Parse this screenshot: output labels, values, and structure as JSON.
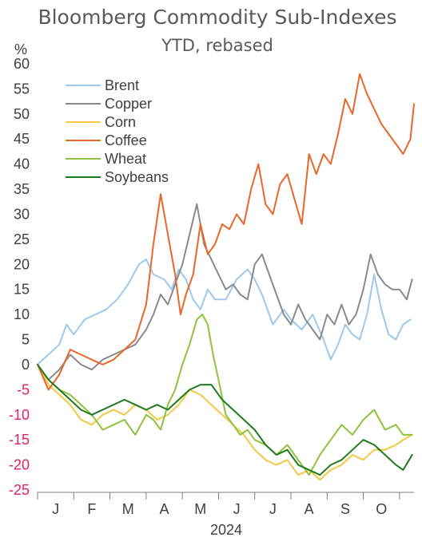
{
  "chart_data": {
    "type": "line",
    "title": "Bloomberg Commodity Sub-Indexes",
    "subtitle": "YTD, rebased",
    "ylabel": "%",
    "xlabel": "2024",
    "ylim": [
      -25,
      60
    ],
    "yticks": [
      60,
      55,
      50,
      45,
      40,
      35,
      30,
      25,
      20,
      15,
      10,
      5,
      0,
      -5,
      -10,
      -15,
      -20,
      -25
    ],
    "months": [
      "J",
      "F",
      "M",
      "A",
      "M",
      "J",
      "J",
      "A",
      "S",
      "O"
    ],
    "x_range": [
      0,
      10.4
    ],
    "colors": {
      "positive_tick": "#3f3f3f",
      "negative_tick": "#e0245e",
      "axis": "#7f7f7f"
    },
    "legend_position": "top-left",
    "series": [
      {
        "name": "Brent",
        "color": "#9dc9ec",
        "x": [
          0,
          0.3,
          0.6,
          0.8,
          1.0,
          1.3,
          1.6,
          1.9,
          2.2,
          2.5,
          2.8,
          3.0,
          3.2,
          3.5,
          3.7,
          3.9,
          4.1,
          4.3,
          4.5,
          4.7,
          4.9,
          5.2,
          5.5,
          5.8,
          6.0,
          6.2,
          6.5,
          6.8,
          7.0,
          7.3,
          7.6,
          7.9,
          8.1,
          8.3,
          8.5,
          8.7,
          8.9,
          9.1,
          9.3,
          9.5,
          9.7,
          9.9,
          10.1,
          10.3
        ],
        "values": [
          0,
          2,
          4,
          8,
          6,
          9,
          10,
          11,
          13,
          16,
          20,
          21,
          18,
          17,
          15,
          19,
          17,
          13,
          11,
          15,
          13,
          13,
          17,
          19,
          17,
          14,
          8,
          11,
          9,
          7,
          10,
          5,
          1,
          4,
          8,
          6,
          5,
          10,
          18,
          11,
          6,
          5,
          8,
          9
        ]
      },
      {
        "name": "Copper",
        "color": "#8a8a8a",
        "x": [
          0,
          0.3,
          0.6,
          0.9,
          1.2,
          1.5,
          1.8,
          2.1,
          2.4,
          2.7,
          3.0,
          3.2,
          3.4,
          3.6,
          3.8,
          4.0,
          4.2,
          4.4,
          4.6,
          4.8,
          5.0,
          5.2,
          5.4,
          5.6,
          5.8,
          6.0,
          6.2,
          6.4,
          6.6,
          6.8,
          7.0,
          7.2,
          7.4,
          7.6,
          7.8,
          8.0,
          8.2,
          8.4,
          8.6,
          8.8,
          9.0,
          9.2,
          9.4,
          9.6,
          9.8,
          10.0,
          10.2,
          10.35
        ],
        "values": [
          0,
          -3,
          -1,
          2,
          0,
          -1,
          1,
          2,
          3,
          4,
          7,
          10,
          14,
          12,
          16,
          20,
          26,
          32,
          24,
          21,
          18,
          15,
          16,
          14,
          13,
          20,
          22,
          18,
          14,
          10,
          8,
          12,
          9,
          7,
          5,
          10,
          8,
          12,
          8,
          10,
          15,
          22,
          18,
          16,
          15,
          15,
          13,
          17
        ]
      },
      {
        "name": "Corn",
        "color": "#f5c842",
        "x": [
          0,
          0.3,
          0.6,
          0.9,
          1.2,
          1.5,
          1.8,
          2.1,
          2.4,
          2.7,
          3.0,
          3.3,
          3.6,
          3.9,
          4.2,
          4.5,
          4.8,
          5.1,
          5.4,
          5.7,
          6.0,
          6.3,
          6.6,
          6.9,
          7.2,
          7.5,
          7.8,
          8.1,
          8.4,
          8.7,
          9.0,
          9.3,
          9.6,
          9.9,
          10.1,
          10.35
        ],
        "values": [
          0,
          -4,
          -6,
          -8,
          -11,
          -12,
          -10,
          -9,
          -10,
          -8,
          -9,
          -11,
          -10,
          -8,
          -5,
          -6,
          -8,
          -10,
          -12,
          -14,
          -17,
          -19,
          -20,
          -19,
          -22,
          -21,
          -23,
          -21,
          -20,
          -18,
          -19,
          -17,
          -17,
          -16,
          -15,
          -14
        ]
      },
      {
        "name": "Coffee",
        "color": "#e8672a",
        "x": [
          0,
          0.3,
          0.6,
          0.9,
          1.2,
          1.5,
          1.8,
          2.1,
          2.4,
          2.7,
          3.0,
          3.2,
          3.4,
          3.6,
          3.8,
          3.95,
          4.1,
          4.3,
          4.5,
          4.7,
          4.9,
          5.1,
          5.3,
          5.5,
          5.7,
          5.9,
          6.1,
          6.3,
          6.5,
          6.7,
          6.9,
          7.1,
          7.3,
          7.5,
          7.7,
          7.9,
          8.1,
          8.3,
          8.5,
          8.7,
          8.9,
          9.1,
          9.3,
          9.5,
          9.7,
          9.9,
          10.1,
          10.3,
          10.4
        ],
        "values": [
          0,
          -5,
          -2,
          3,
          2,
          1,
          0,
          1,
          3,
          5,
          12,
          24,
          34,
          26,
          18,
          10,
          14,
          18,
          28,
          22,
          24,
          28,
          27,
          30,
          28,
          35,
          40,
          32,
          30,
          36,
          38,
          33,
          28,
          42,
          38,
          42,
          40,
          46,
          53,
          50,
          58,
          54,
          51,
          48,
          46,
          44,
          42,
          45,
          52
        ]
      },
      {
        "name": "Wheat",
        "color": "#8fc23e",
        "x": [
          0,
          0.3,
          0.6,
          0.9,
          1.2,
          1.5,
          1.8,
          2.1,
          2.4,
          2.7,
          3.0,
          3.2,
          3.4,
          3.6,
          3.8,
          4.0,
          4.2,
          4.4,
          4.55,
          4.7,
          4.85,
          5.0,
          5.2,
          5.4,
          5.6,
          5.8,
          6.0,
          6.3,
          6.6,
          6.9,
          7.2,
          7.5,
          7.8,
          8.1,
          8.4,
          8.7,
          9.0,
          9.3,
          9.6,
          9.9,
          10.1,
          10.35
        ],
        "values": [
          0,
          -3,
          -5,
          -6,
          -8,
          -10,
          -13,
          -12,
          -11,
          -14,
          -10,
          -11,
          -13,
          -8,
          -5,
          0,
          4,
          9,
          10,
          8,
          2,
          -3,
          -10,
          -12,
          -14,
          -13,
          -15,
          -16,
          -18,
          -16,
          -19,
          -22,
          -18,
          -15,
          -12,
          -14,
          -11,
          -9,
          -13,
          -12,
          -14,
          -14
        ]
      },
      {
        "name": "Soybeans",
        "color": "#1e7a1e",
        "x": [
          0,
          0.3,
          0.6,
          0.9,
          1.2,
          1.5,
          1.8,
          2.1,
          2.4,
          2.7,
          3.0,
          3.3,
          3.6,
          3.9,
          4.2,
          4.5,
          4.8,
          5.1,
          5.4,
          5.7,
          6.0,
          6.3,
          6.6,
          6.9,
          7.2,
          7.5,
          7.8,
          8.1,
          8.4,
          8.7,
          9.0,
          9.3,
          9.6,
          9.9,
          10.1,
          10.35
        ],
        "values": [
          0,
          -3,
          -5,
          -7,
          -9,
          -10,
          -9,
          -8,
          -7,
          -8,
          -9,
          -8,
          -9,
          -7,
          -5,
          -4,
          -4,
          -7,
          -9,
          -11,
          -13,
          -16,
          -18,
          -17,
          -20,
          -21,
          -22,
          -20,
          -19,
          -17,
          -15,
          -16,
          -18,
          -20,
          -21,
          -18
        ]
      }
    ]
  }
}
